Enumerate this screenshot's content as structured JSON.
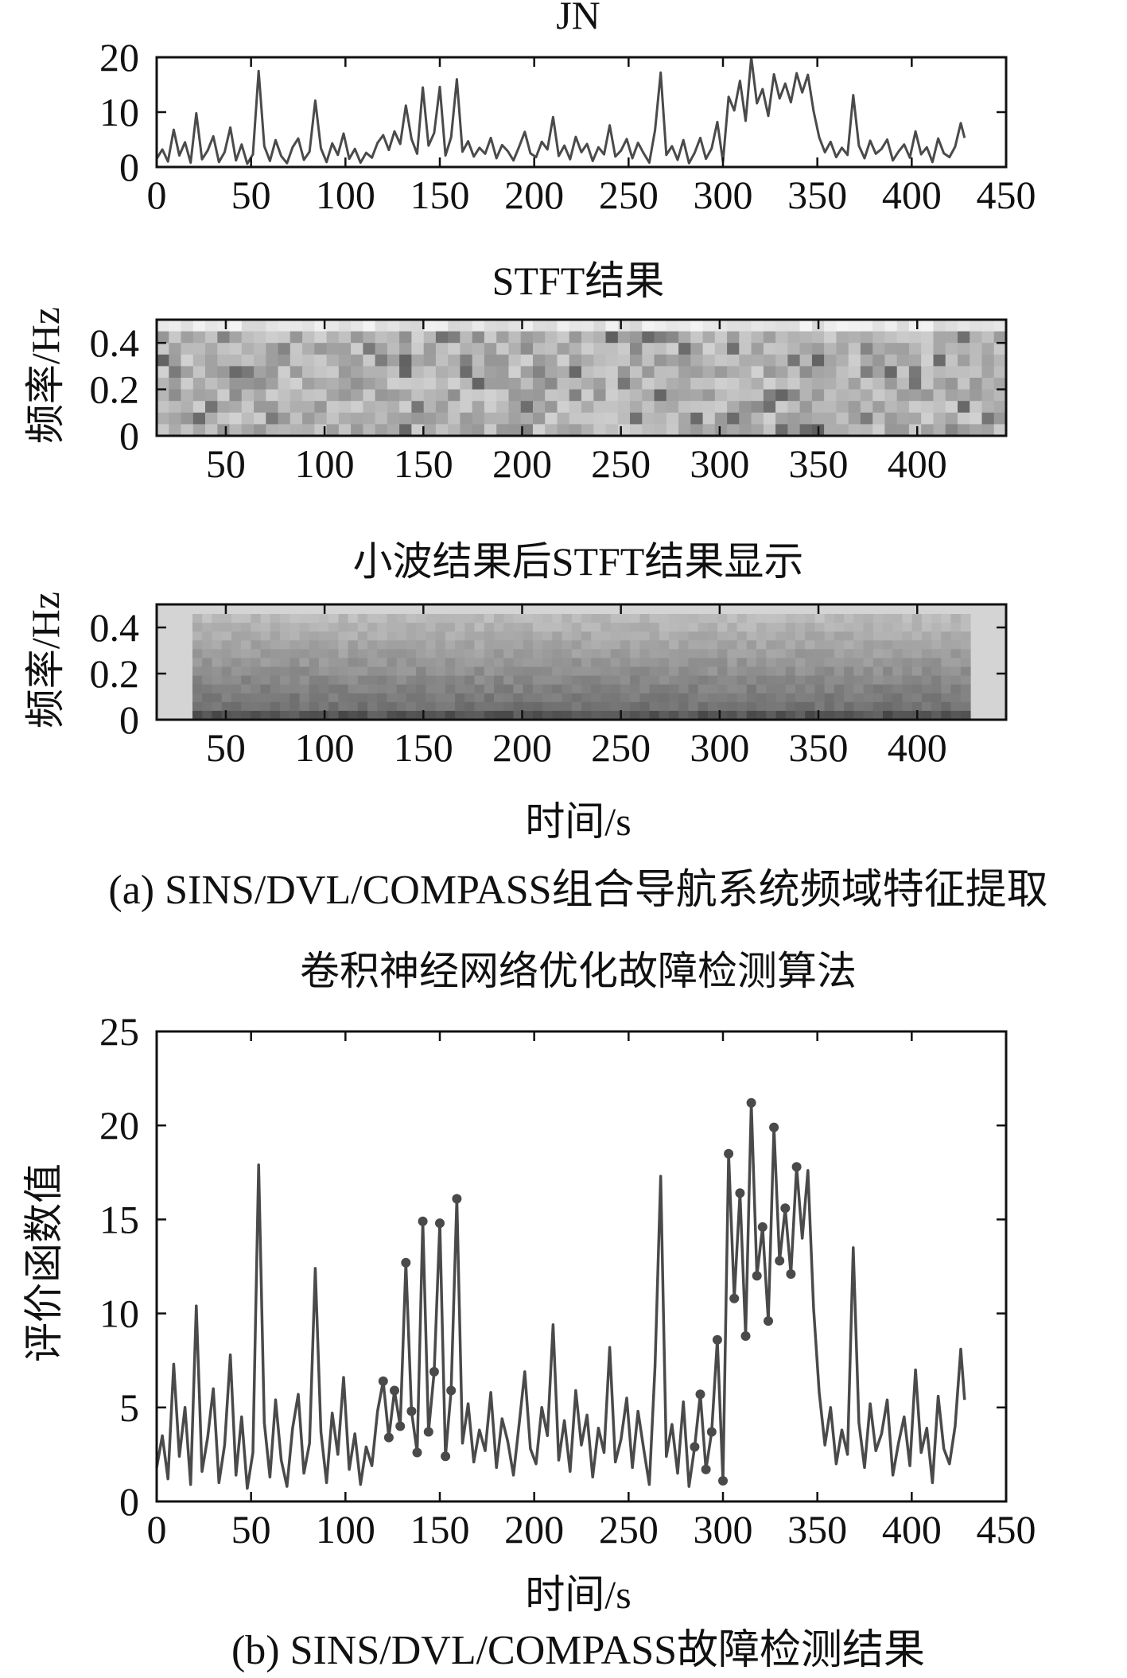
{
  "figure": {
    "caption_a": "(a) SINS/DVL/COMPASS组合导航系统频域特征提取",
    "caption_b": "(b) SINS/DVL/COMPASS故障检测结果"
  },
  "colors": {
    "line": "#4a4a4a",
    "axis": "#111111",
    "marker": "#4a4a4a"
  },
  "chart_data": [
    {
      "type": "line",
      "title": "JN",
      "xlabel": "",
      "ylabel": "",
      "xlim": [
        0,
        450
      ],
      "ylim": [
        0,
        20
      ],
      "xticks": [
        0,
        50,
        100,
        150,
        200,
        250,
        300,
        350,
        400,
        450
      ],
      "yticks": [
        0,
        10,
        20
      ],
      "grid": false,
      "series": [
        {
          "x": [
            0,
            3,
            6,
            9,
            12,
            15,
            18,
            21,
            24,
            27,
            30,
            33,
            36,
            39,
            42,
            45,
            48,
            51,
            54,
            57,
            60,
            63,
            66,
            69,
            72,
            75,
            78,
            81,
            84,
            87,
            90,
            93,
            96,
            99,
            102,
            105,
            108,
            111,
            114,
            117,
            120,
            123,
            126,
            129,
            132,
            135,
            138,
            141,
            144,
            147,
            150,
            153,
            156,
            159,
            162,
            165,
            168,
            171,
            174,
            177,
            180,
            183,
            186,
            189,
            192,
            195,
            198,
            201,
            204,
            207,
            210,
            213,
            216,
            219,
            222,
            225,
            228,
            231,
            234,
            237,
            240,
            243,
            246,
            249,
            252,
            255,
            258,
            261,
            264,
            267,
            270,
            273,
            276,
            279,
            282,
            285,
            288,
            291,
            294,
            297,
            300,
            303,
            306,
            309,
            312,
            315,
            318,
            321,
            324,
            327,
            330,
            333,
            336,
            339,
            342,
            345,
            348,
            351,
            354,
            357,
            360,
            363,
            366,
            369,
            372,
            375,
            378,
            381,
            384,
            387,
            390,
            393,
            396,
            399,
            402,
            405,
            408,
            411,
            414,
            417,
            420,
            423,
            426,
            428
          ],
          "y": [
            1.5,
            3.2,
            1.0,
            6.8,
            2.1,
            4.5,
            0.8,
            9.8,
            1.4,
            3.0,
            5.6,
            0.9,
            2.7,
            7.2,
            1.2,
            4.1,
            0.6,
            2.3,
            17.5,
            3.8,
            1.1,
            4.9,
            2.0,
            0.7,
            3.6,
            5.2,
            1.3,
            2.8,
            12.1,
            3.4,
            0.9,
            4.3,
            2.2,
            6.1,
            1.5,
            3.3,
            0.8,
            2.6,
            1.7,
            4.4,
            5.8,
            3.1,
            6.5,
            4.2,
            11.2,
            5.1,
            2.4,
            14.5,
            3.9,
            6.2,
            14.6,
            2.1,
            5.4,
            16.0,
            2.8,
            4.7,
            1.9,
            3.5,
            2.4,
            5.3,
            1.6,
            4.0,
            2.9,
            1.2,
            3.7,
            6.4,
            2.5,
            1.8,
            4.6,
            3.2,
            9.1,
            2.0,
            3.9,
            1.4,
            5.5,
            2.7,
            4.2,
            1.1,
            3.6,
            2.3,
            7.6,
            1.9,
            3.0,
            5.1,
            1.6,
            4.4,
            2.5,
            0.8,
            6.7,
            17.2,
            2.2,
            3.8,
            1.3,
            4.9,
            0.7,
            2.6,
            5.3,
            1.5,
            3.4,
            8.2,
            1.0,
            12.8,
            10.3,
            15.7,
            8.4,
            21.0,
            11.6,
            14.2,
            9.3,
            16.9,
            12.5,
            15.2,
            11.8,
            17.1,
            13.6,
            16.8,
            10.2,
            5.4,
            2.7,
            4.6,
            1.8,
            3.5,
            2.2,
            13.1,
            3.9,
            1.6,
            4.8,
            2.4,
            3.3,
            5.0,
            1.2,
            2.8,
            4.1,
            1.7,
            6.5,
            2.3,
            3.6,
            0.9,
            5.2,
            2.5,
            1.8,
            3.7,
            8.0,
            5.3
          ]
        }
      ]
    },
    {
      "type": "heatmap",
      "title": "STFT结果",
      "xlabel": "",
      "ylabel": "频率/Hz",
      "xlim": [
        15,
        445
      ],
      "ylim": [
        0,
        0.5
      ],
      "xticks": [
        50,
        100,
        150,
        200,
        250,
        300,
        350,
        400
      ],
      "yticks": [
        0,
        0.2,
        0.4
      ],
      "grid": false
    },
    {
      "type": "heatmap",
      "title": "小波结果后STFT结果显示",
      "xlabel": "时间/s",
      "ylabel": "频率/Hz",
      "xlim": [
        15,
        445
      ],
      "ylim": [
        0,
        0.5
      ],
      "xticks": [
        50,
        100,
        150,
        200,
        250,
        300,
        350,
        400
      ],
      "yticks": [
        0,
        0.2,
        0.4
      ],
      "grid": false
    },
    {
      "type": "line",
      "title": "卷积神经网络优化故障检测算法",
      "xlabel": "时间/s",
      "ylabel": "评价函数值",
      "xlim": [
        0,
        450
      ],
      "ylim": [
        0,
        25
      ],
      "xticks": [
        0,
        50,
        100,
        150,
        200,
        250,
        300,
        350,
        400,
        450
      ],
      "yticks": [
        0,
        5,
        10,
        15,
        20,
        25
      ],
      "grid": false,
      "series": [
        {
          "x": [
            0,
            3,
            6,
            9,
            12,
            15,
            18,
            21,
            24,
            27,
            30,
            33,
            36,
            39,
            42,
            45,
            48,
            51,
            54,
            57,
            60,
            63,
            66,
            69,
            72,
            75,
            78,
            81,
            84,
            87,
            90,
            93,
            96,
            99,
            102,
            105,
            108,
            111,
            114,
            117,
            120,
            123,
            126,
            129,
            132,
            135,
            138,
            141,
            144,
            147,
            150,
            153,
            156,
            159,
            162,
            165,
            168,
            171,
            174,
            177,
            180,
            183,
            186,
            189,
            192,
            195,
            198,
            201,
            204,
            207,
            210,
            213,
            216,
            219,
            222,
            225,
            228,
            231,
            234,
            237,
            240,
            243,
            246,
            249,
            252,
            255,
            258,
            261,
            264,
            267,
            270,
            273,
            276,
            279,
            282,
            285,
            288,
            291,
            294,
            297,
            300,
            303,
            306,
            309,
            312,
            315,
            318,
            321,
            324,
            327,
            330,
            333,
            336,
            339,
            342,
            345,
            348,
            351,
            354,
            357,
            360,
            363,
            366,
            369,
            372,
            375,
            378,
            381,
            384,
            387,
            390,
            393,
            396,
            399,
            402,
            405,
            408,
            411,
            414,
            417,
            420,
            423,
            426,
            428
          ],
          "y": [
            1.8,
            3.5,
            1.2,
            7.3,
            2.4,
            5.0,
            0.9,
            10.4,
            1.6,
            3.4,
            6.0,
            1.0,
            3.0,
            7.8,
            1.4,
            4.5,
            0.7,
            2.6,
            17.9,
            4.2,
            1.3,
            5.4,
            2.2,
            0.8,
            3.9,
            5.7,
            1.5,
            3.1,
            12.4,
            3.7,
            1.0,
            4.7,
            2.5,
            6.6,
            1.7,
            3.6,
            0.9,
            2.9,
            1.9,
            4.8,
            6.4,
            3.4,
            5.9,
            4.0,
            12.7,
            4.8,
            2.6,
            14.9,
            3.7,
            6.9,
            14.8,
            2.4,
            5.9,
            16.1,
            3.1,
            5.2,
            2.1,
            3.8,
            2.7,
            5.8,
            1.8,
            4.4,
            3.2,
            1.4,
            4.1,
            6.9,
            2.8,
            2.0,
            5.0,
            3.5,
            9.4,
            2.2,
            4.3,
            1.6,
            5.9,
            3.0,
            4.6,
            1.3,
            3.9,
            2.6,
            8.2,
            2.1,
            3.3,
            5.5,
            1.8,
            4.8,
            2.8,
            0.9,
            7.2,
            17.3,
            2.4,
            4.1,
            1.5,
            5.3,
            0.8,
            2.9,
            5.7,
            1.7,
            3.7,
            8.6,
            1.1,
            18.5,
            10.8,
            16.4,
            8.8,
            21.2,
            12.0,
            14.6,
            9.6,
            19.9,
            12.8,
            15.6,
            12.1,
            17.8,
            14.0,
            17.6,
            10.3,
            5.8,
            3.0,
            5.0,
            2.0,
            3.8,
            2.5,
            13.5,
            4.2,
            1.8,
            5.2,
            2.7,
            3.6,
            5.4,
            1.4,
            3.1,
            4.5,
            1.9,
            7.0,
            2.6,
            3.9,
            1.0,
            5.6,
            2.8,
            2.0,
            4.0,
            8.1,
            5.4
          ]
        }
      ]
    }
  ]
}
